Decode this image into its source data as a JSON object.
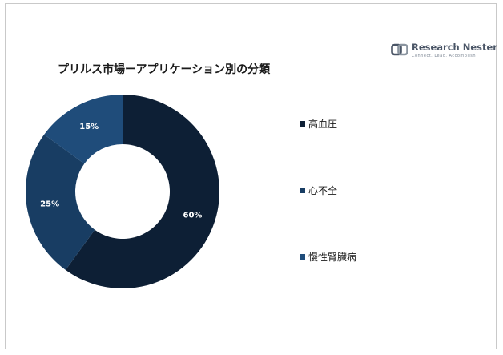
{
  "chart_data": {
    "type": "pie",
    "donut": true,
    "title": "プリルス市場ーアプリケーション別の分類",
    "categories": [
      "高血圧",
      "心不全",
      "慢性腎臓病"
    ],
    "values": [
      60,
      25,
      15
    ],
    "value_labels": [
      "60%",
      "25%",
      "15%"
    ],
    "colors": [
      "#0d1f35",
      "#183d63",
      "#1f4c7a"
    ],
    "legend_position": "right"
  },
  "brand": {
    "name": "Research Nester",
    "tagline": "Connect. Lead. Accomplish"
  }
}
